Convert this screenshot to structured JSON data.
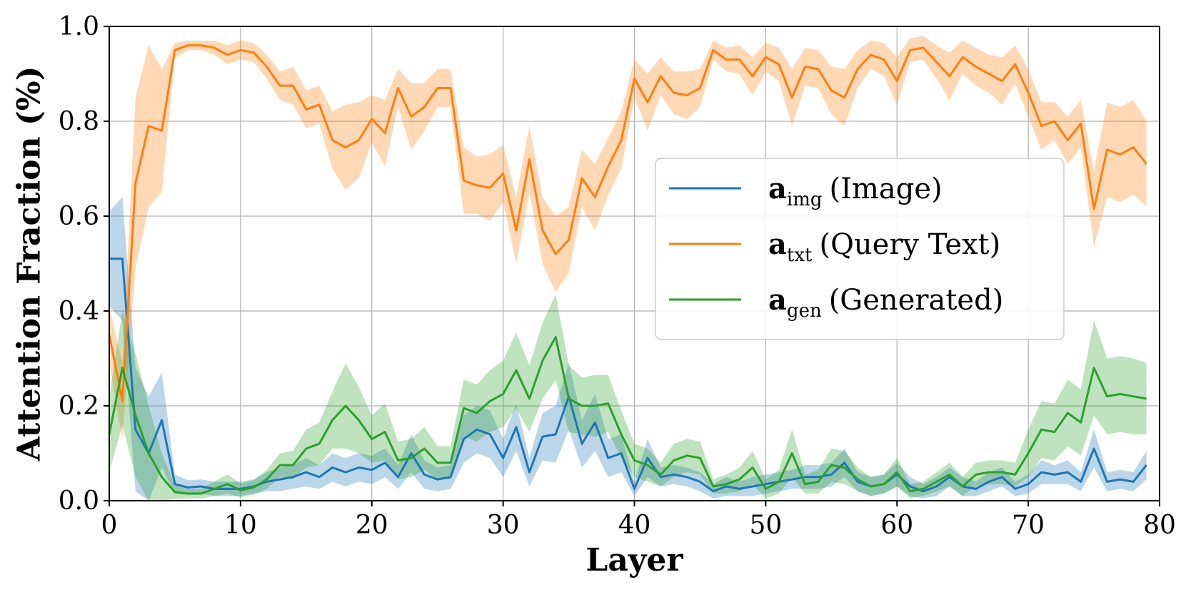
{
  "chart_data": {
    "type": "line",
    "title": "",
    "xlabel": "Layer",
    "ylabel": "Attention Fraction (%)",
    "xlim": [
      0,
      80
    ],
    "ylim": [
      0.0,
      1.0
    ],
    "xticks": [
      "0",
      "10",
      "20",
      "30",
      "40",
      "50",
      "60",
      "70",
      "80"
    ],
    "yticks": [
      "0.0",
      "0.2",
      "0.4",
      "0.6",
      "0.8",
      "1.0"
    ],
    "grid": true,
    "legend_position": "center-right",
    "series": [
      {
        "key": "img",
        "name": "a_img (Image)",
        "legend_symbol": "a",
        "legend_sub": "img",
        "legend_desc": "(Image)",
        "color": "#1f77b4",
        "values": [
          0.51,
          0.51,
          0.15,
          0.1,
          0.17,
          0.035,
          0.028,
          0.03,
          0.025,
          0.025,
          0.025,
          0.03,
          0.04,
          0.045,
          0.05,
          0.06,
          0.05,
          0.07,
          0.06,
          0.07,
          0.065,
          0.08,
          0.05,
          0.1,
          0.055,
          0.045,
          0.05,
          0.13,
          0.15,
          0.14,
          0.09,
          0.155,
          0.06,
          0.135,
          0.14,
          0.22,
          0.12,
          0.165,
          0.09,
          0.1,
          0.025,
          0.09,
          0.05,
          0.055,
          0.05,
          0.04,
          0.02,
          0.03,
          0.025,
          0.03,
          0.035,
          0.04,
          0.045,
          0.05,
          0.05,
          0.055,
          0.08,
          0.04,
          0.03,
          0.035,
          0.055,
          0.03,
          0.02,
          0.03,
          0.05,
          0.03,
          0.025,
          0.04,
          0.05,
          0.025,
          0.035,
          0.06,
          0.055,
          0.06,
          0.04,
          0.11,
          0.04,
          0.045,
          0.04,
          0.075
        ],
        "band": [
          0.1,
          0.13,
          0.13,
          0.12,
          0.1,
          0.02,
          0.015,
          0.015,
          0.015,
          0.015,
          0.015,
          0.015,
          0.02,
          0.025,
          0.025,
          0.03,
          0.025,
          0.03,
          0.03,
          0.03,
          0.03,
          0.03,
          0.025,
          0.04,
          0.03,
          0.025,
          0.025,
          0.05,
          0.05,
          0.05,
          0.04,
          0.05,
          0.03,
          0.05,
          0.06,
          0.07,
          0.05,
          0.06,
          0.04,
          0.04,
          0.015,
          0.04,
          0.02,
          0.02,
          0.02,
          0.02,
          0.015,
          0.02,
          0.015,
          0.02,
          0.02,
          0.02,
          0.02,
          0.025,
          0.025,
          0.025,
          0.03,
          0.02,
          0.02,
          0.02,
          0.025,
          0.02,
          0.015,
          0.02,
          0.02,
          0.02,
          0.015,
          0.02,
          0.02,
          0.015,
          0.02,
          0.025,
          0.02,
          0.025,
          0.02,
          0.04,
          0.02,
          0.02,
          0.02,
          0.03
        ]
      },
      {
        "key": "txt",
        "name": "a_txt (Query Text)",
        "legend_symbol": "a",
        "legend_sub": "txt",
        "legend_desc": "(Query Text)",
        "color": "#ff7f0e",
        "values": [
          0.35,
          0.21,
          0.67,
          0.79,
          0.78,
          0.95,
          0.96,
          0.96,
          0.955,
          0.94,
          0.95,
          0.945,
          0.915,
          0.875,
          0.875,
          0.825,
          0.835,
          0.76,
          0.745,
          0.76,
          0.805,
          0.775,
          0.87,
          0.81,
          0.83,
          0.87,
          0.87,
          0.675,
          0.665,
          0.66,
          0.69,
          0.57,
          0.72,
          0.57,
          0.52,
          0.55,
          0.68,
          0.64,
          0.705,
          0.76,
          0.89,
          0.84,
          0.895,
          0.86,
          0.855,
          0.87,
          0.95,
          0.93,
          0.93,
          0.895,
          0.935,
          0.92,
          0.85,
          0.915,
          0.91,
          0.865,
          0.85,
          0.91,
          0.94,
          0.93,
          0.885,
          0.95,
          0.955,
          0.925,
          0.895,
          0.935,
          0.915,
          0.9,
          0.885,
          0.92,
          0.86,
          0.79,
          0.8,
          0.76,
          0.795,
          0.615,
          0.74,
          0.73,
          0.745,
          0.71
        ],
        "band": [
          0.06,
          0.08,
          0.18,
          0.17,
          0.13,
          0.015,
          0.01,
          0.01,
          0.015,
          0.02,
          0.02,
          0.02,
          0.025,
          0.03,
          0.04,
          0.04,
          0.04,
          0.06,
          0.09,
          0.08,
          0.05,
          0.07,
          0.04,
          0.07,
          0.05,
          0.04,
          0.04,
          0.07,
          0.06,
          0.07,
          0.06,
          0.07,
          0.07,
          0.07,
          0.08,
          0.07,
          0.06,
          0.07,
          0.06,
          0.06,
          0.04,
          0.06,
          0.04,
          0.045,
          0.05,
          0.04,
          0.02,
          0.025,
          0.03,
          0.04,
          0.03,
          0.035,
          0.06,
          0.04,
          0.04,
          0.05,
          0.06,
          0.04,
          0.03,
          0.035,
          0.05,
          0.025,
          0.025,
          0.035,
          0.05,
          0.035,
          0.04,
          0.04,
          0.05,
          0.04,
          0.05,
          0.05,
          0.04,
          0.05,
          0.05,
          0.08,
          0.1,
          0.1,
          0.1,
          0.09
        ]
      },
      {
        "key": "gen",
        "name": "a_gen (Generated)",
        "legend_symbol": "a",
        "legend_sub": "gen",
        "legend_desc": "(Generated)",
        "color": "#2ca02c",
        "values": [
          0.14,
          0.28,
          0.18,
          0.1,
          0.05,
          0.018,
          0.015,
          0.015,
          0.025,
          0.035,
          0.022,
          0.028,
          0.045,
          0.075,
          0.075,
          0.11,
          0.12,
          0.17,
          0.2,
          0.17,
          0.13,
          0.145,
          0.085,
          0.09,
          0.11,
          0.08,
          0.08,
          0.195,
          0.185,
          0.21,
          0.225,
          0.275,
          0.215,
          0.295,
          0.345,
          0.215,
          0.2,
          0.2,
          0.205,
          0.14,
          0.085,
          0.075,
          0.055,
          0.085,
          0.095,
          0.09,
          0.03,
          0.035,
          0.045,
          0.07,
          0.025,
          0.04,
          0.1,
          0.035,
          0.04,
          0.075,
          0.07,
          0.045,
          0.03,
          0.035,
          0.06,
          0.02,
          0.025,
          0.04,
          0.055,
          0.03,
          0.055,
          0.06,
          0.06,
          0.055,
          0.1,
          0.15,
          0.145,
          0.185,
          0.165,
          0.28,
          0.22,
          0.225,
          0.22,
          0.215
        ],
        "band": [
          0.08,
          0.12,
          0.13,
          0.1,
          0.05,
          0.015,
          0.01,
          0.01,
          0.015,
          0.02,
          0.015,
          0.015,
          0.02,
          0.025,
          0.03,
          0.04,
          0.045,
          0.06,
          0.09,
          0.07,
          0.05,
          0.06,
          0.04,
          0.04,
          0.045,
          0.035,
          0.035,
          0.06,
          0.06,
          0.065,
          0.07,
          0.08,
          0.07,
          0.08,
          0.09,
          0.07,
          0.06,
          0.065,
          0.06,
          0.05,
          0.035,
          0.035,
          0.025,
          0.035,
          0.035,
          0.035,
          0.015,
          0.02,
          0.025,
          0.035,
          0.02,
          0.025,
          0.05,
          0.02,
          0.025,
          0.035,
          0.035,
          0.025,
          0.02,
          0.02,
          0.03,
          0.015,
          0.015,
          0.02,
          0.025,
          0.02,
          0.025,
          0.025,
          0.025,
          0.025,
          0.05,
          0.06,
          0.06,
          0.07,
          0.07,
          0.1,
          0.08,
          0.08,
          0.08,
          0.075
        ]
      }
    ]
  }
}
